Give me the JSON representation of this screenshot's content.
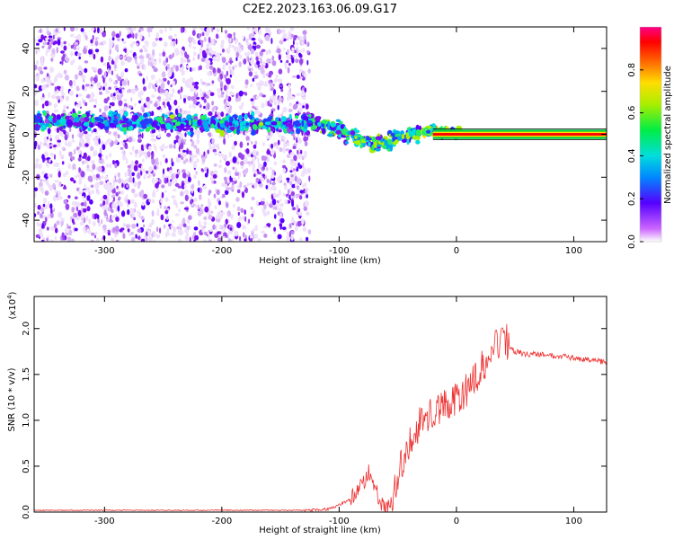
{
  "title": "C2E2.2023.163.06.09.G17",
  "chart_data": [
    {
      "type": "heatmap",
      "xlabel": "Height of straight line (km)",
      "ylabel": "Frequency (Hz)",
      "xlim": [
        -360,
        128
      ],
      "ylim": [
        -50,
        50
      ],
      "xticks": [
        -300,
        -200,
        -100,
        0,
        100
      ],
      "yticks": [
        -40,
        -20,
        0,
        20,
        40
      ],
      "colorbar": {
        "label": "Normalized spectral amplitude",
        "range": [
          0,
          1
        ],
        "ticks": [
          0.0,
          0.2,
          0.4,
          0.6,
          0.8
        ],
        "tick_labels": [
          "0.0",
          "0.2",
          "0.4",
          "0.6",
          "0.8"
        ]
      },
      "ridge": {
        "x": [
          -350,
          -300,
          -250,
          -200,
          -150,
          -120,
          -100,
          -80,
          -70,
          -60,
          -50,
          -40,
          -30,
          -20,
          0,
          50,
          100,
          125
        ],
        "y": [
          6,
          6,
          5,
          5,
          5,
          5,
          2,
          -3,
          -5,
          -4,
          -2,
          0,
          1,
          1.5,
          0.5,
          0,
          0,
          0
        ]
      },
      "noise_band_xlim": [
        -360,
        -125
      ]
    },
    {
      "type": "line",
      "xlabel": "Height of straight line (km)",
      "ylabel": "SNR (10 * v/v)",
      "multiplier_label": "(x10",
      "multiplier_exp": "4",
      "multiplier_close": ")",
      "xlim": [
        -360,
        128
      ],
      "ylim": [
        0,
        2.35
      ],
      "xticks": [
        -300,
        -200,
        -100,
        0,
        100
      ],
      "yticks": [
        0.0,
        0.5,
        1.0,
        1.5,
        2.0
      ],
      "ytick_labels": [
        "0.0",
        "0.5",
        "1.0",
        "1.5",
        "2.0"
      ],
      "series": [
        {
          "color": "#ee3333",
          "x": [
            -360,
            -300,
            -200,
            -130,
            -110,
            -100,
            -90,
            -80,
            -75,
            -70,
            -65,
            -60,
            -55,
            -50,
            -45,
            -40,
            -35,
            -30,
            -25,
            -20,
            -10,
            0,
            10,
            20,
            30,
            35,
            40,
            45,
            50,
            60,
            70,
            80,
            90,
            100,
            110,
            120,
            128
          ],
          "y": [
            0.02,
            0.02,
            0.02,
            0.02,
            0.03,
            0.08,
            0.14,
            0.3,
            0.45,
            0.28,
            0.12,
            0.03,
            0.1,
            0.35,
            0.6,
            0.75,
            0.9,
            0.98,
            1.05,
            1.1,
            1.15,
            1.22,
            1.35,
            1.55,
            1.7,
            1.85,
            1.95,
            1.8,
            1.75,
            1.72,
            1.72,
            1.7,
            1.7,
            1.68,
            1.66,
            1.65,
            1.63
          ]
        }
      ]
    }
  ]
}
